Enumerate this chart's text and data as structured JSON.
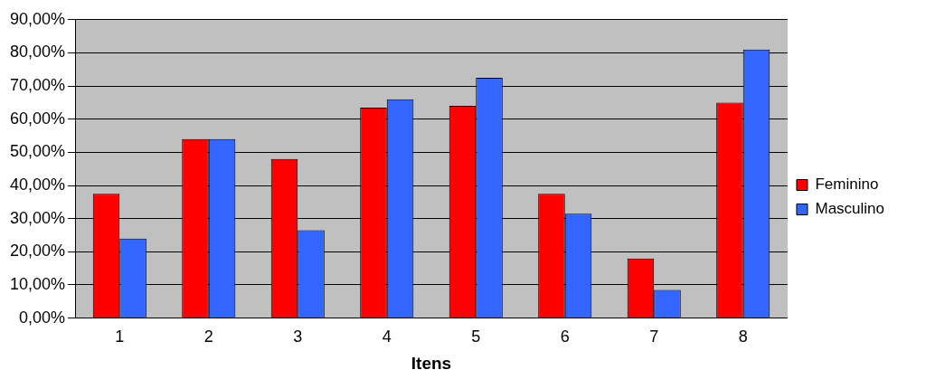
{
  "chart_data": {
    "type": "bar",
    "xlabel": "Itens",
    "categories": [
      "1",
      "2",
      "3",
      "4",
      "5",
      "6",
      "7",
      "8"
    ],
    "series": [
      {
        "name": "Feminino",
        "color": "#ff0000",
        "values": [
          37.5,
          54,
          48,
          63.5,
          64,
          37.5,
          18,
          65
        ]
      },
      {
        "name": "Masculino",
        "color": "#3366ff",
        "values": [
          24,
          54,
          26.5,
          66,
          72.5,
          31.5,
          8.5,
          81
        ]
      }
    ],
    "ylim": [
      0,
      90
    ],
    "yticks": [
      {
        "value": 0,
        "label": "0,00%"
      },
      {
        "value": 10,
        "label": "10,00%"
      },
      {
        "value": 20,
        "label": "20,00%"
      },
      {
        "value": 30,
        "label": "30,00%"
      },
      {
        "value": 40,
        "label": "40,00%"
      },
      {
        "value": 50,
        "label": "50,00%"
      },
      {
        "value": 60,
        "label": "60,00%"
      },
      {
        "value": 70,
        "label": "70,00%"
      },
      {
        "value": 80,
        "label": "80,00%"
      },
      {
        "value": 90,
        "label": "90,00%"
      }
    ],
    "grid": "y",
    "legend": "right"
  }
}
